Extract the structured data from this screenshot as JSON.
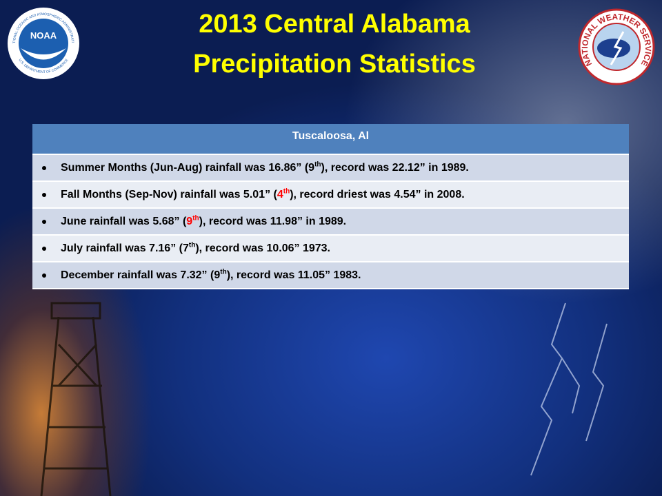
{
  "header": {
    "title_line1": "2013 Central Alabama",
    "title_line2": "Precipitation Statistics"
  },
  "logos": {
    "noaa": {
      "label": "NOAA",
      "ring_top": "NATIONAL OCEANIC AND ATMOSPHERIC ADMINISTRATION",
      "ring_bottom": "U.S. DEPARTMENT OF COMMERCE"
    },
    "nws": {
      "ring": "NATIONAL WEATHER SERVICE"
    }
  },
  "table": {
    "header": "Tuscaloosa, Al",
    "rows": [
      {
        "before": "Summer Months (Jun-Aug) rainfall was 16.86” (",
        "rank": "9",
        "suffix": "th",
        "after": "), record was 22.12” in 1989.",
        "highlight": false
      },
      {
        "before": "Fall Months (Sep-Nov) rainfall was 5.01” (",
        "rank": "4",
        "suffix": "th",
        "after": "), record driest was 4.54” in 2008.",
        "highlight": true
      },
      {
        "before": "June rainfall was 5.68” (",
        "rank": "9",
        "suffix": "th",
        "after": "), record was 11.98” in 1989.",
        "highlight": true
      },
      {
        "before": "July rainfall was 7.16” (",
        "rank": "7",
        "suffix": "th",
        "after": "), record was 10.06” 1973.",
        "highlight": false
      },
      {
        "before": "December rainfall was 7.32” (",
        "rank": "9",
        "suffix": "th",
        "after": "), record was 11.05” 1983.",
        "highlight": false
      }
    ]
  }
}
